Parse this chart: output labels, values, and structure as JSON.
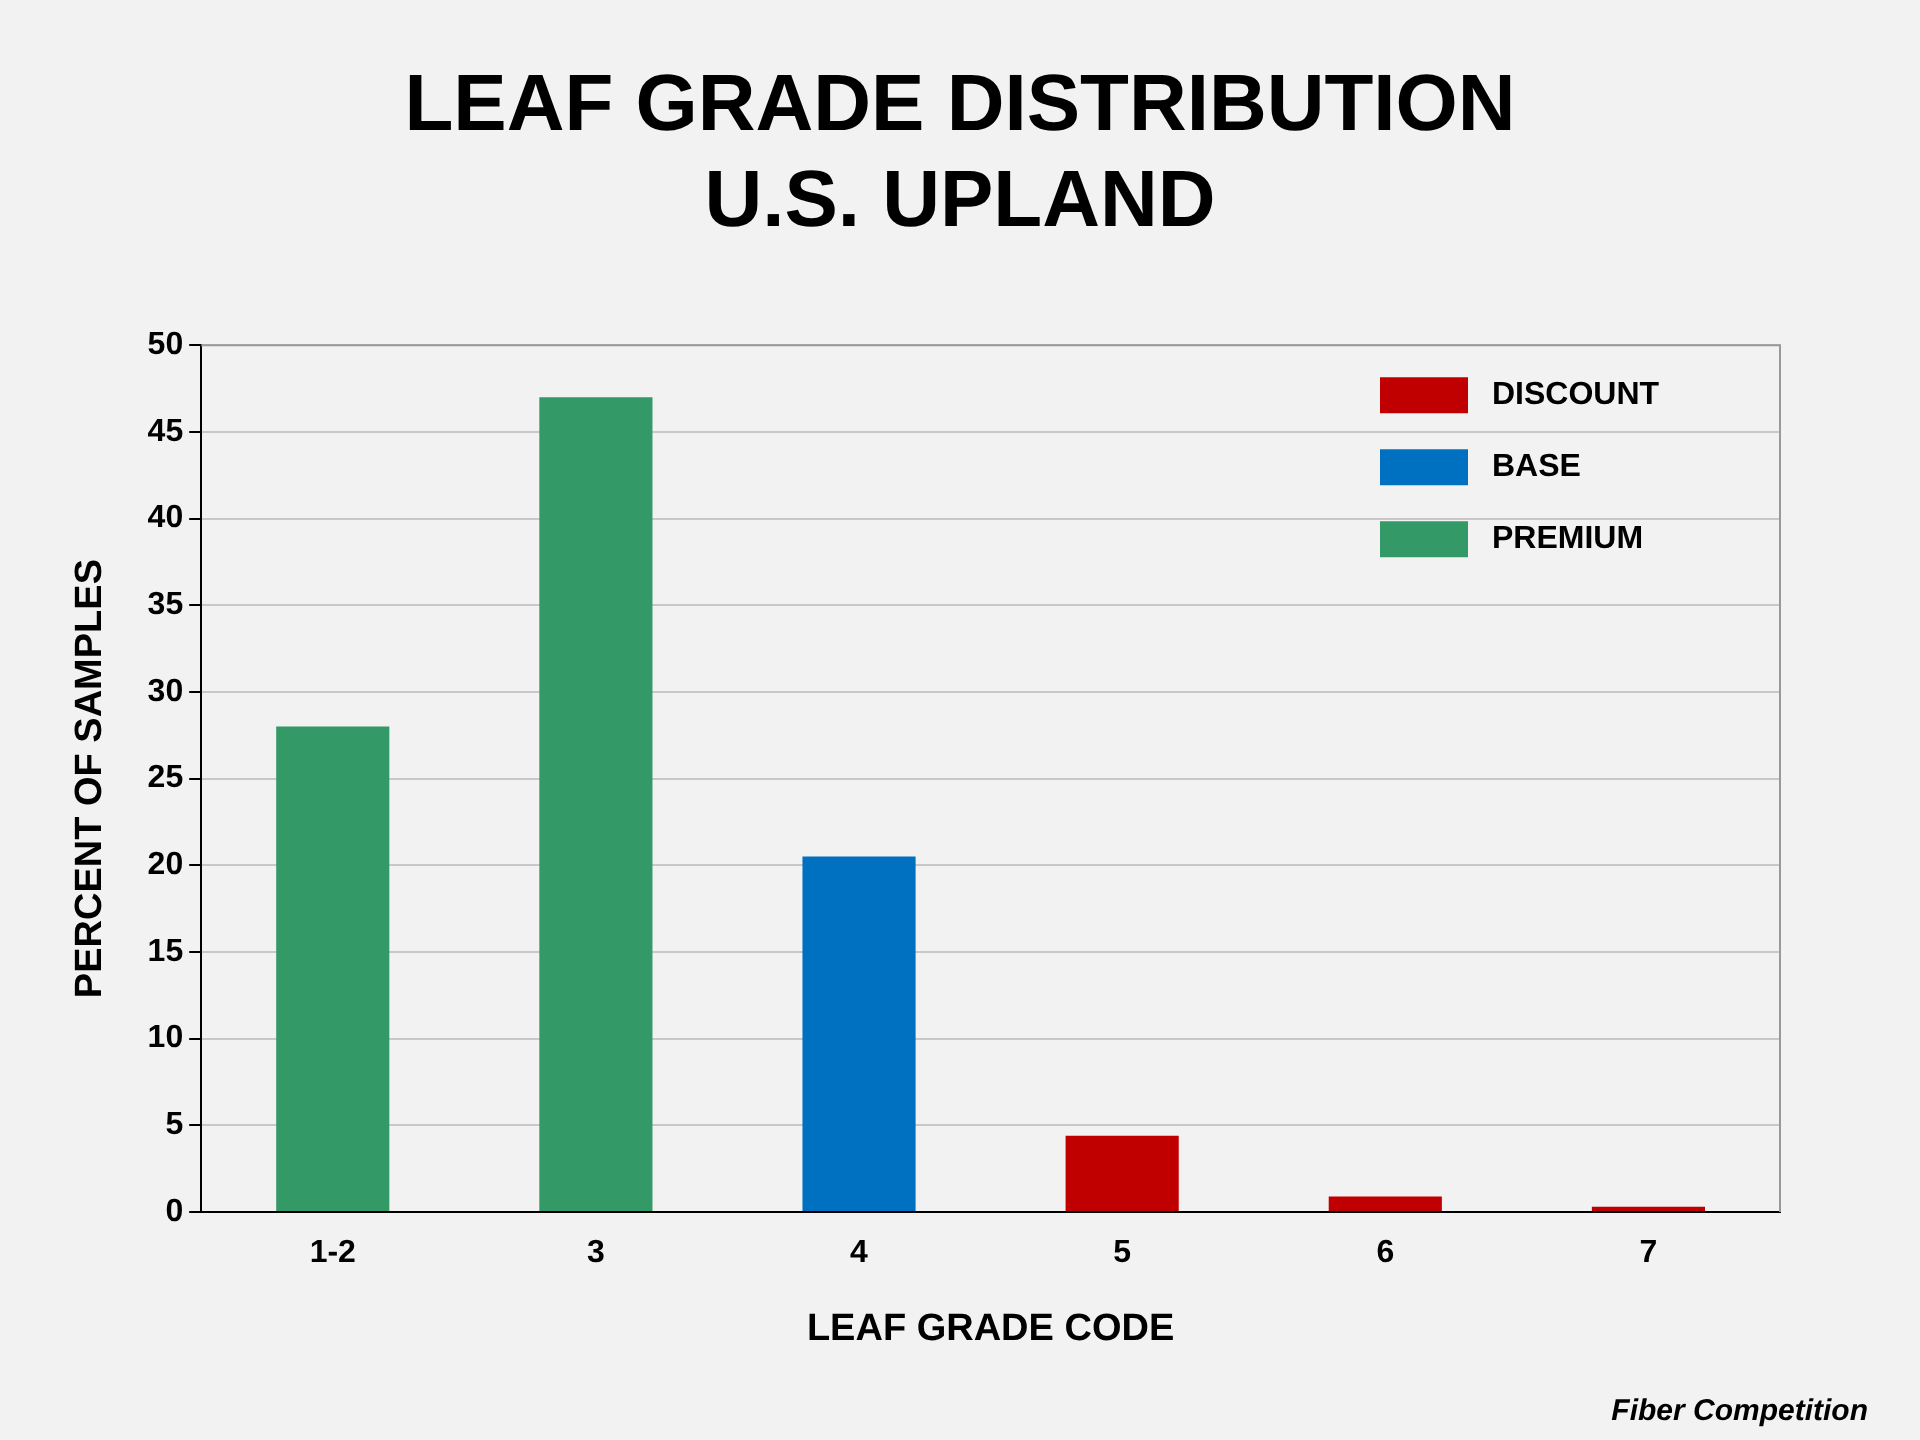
{
  "chart_data": {
    "type": "bar",
    "title": "LEAF GRADE DISTRIBUTION\nU.S. UPLAND",
    "xlabel": "LEAF GRADE CODE",
    "ylabel": "PERCENT OF SAMPLES",
    "categories": [
      "1-2",
      "3",
      "4",
      "5",
      "6",
      "7"
    ],
    "series": [
      {
        "name": "DISCOUNT",
        "color": "#c00000",
        "values": [
          null,
          null,
          null,
          4.4,
          0.9,
          0.3
        ]
      },
      {
        "name": "BASE",
        "color": "#0070c0",
        "values": [
          null,
          null,
          20.5,
          null,
          null,
          null
        ]
      },
      {
        "name": "PREMIUM",
        "color": "#339966",
        "values": [
          28,
          47,
          null,
          null,
          null,
          null
        ]
      }
    ],
    "stacked": true,
    "ylim": [
      0,
      50
    ],
    "yticks": [
      0,
      5,
      10,
      15,
      20,
      25,
      30,
      35,
      40,
      45,
      50
    ],
    "grid": "y",
    "legend": "top right",
    "annotations": [
      "Fiber Competition"
    ]
  }
}
